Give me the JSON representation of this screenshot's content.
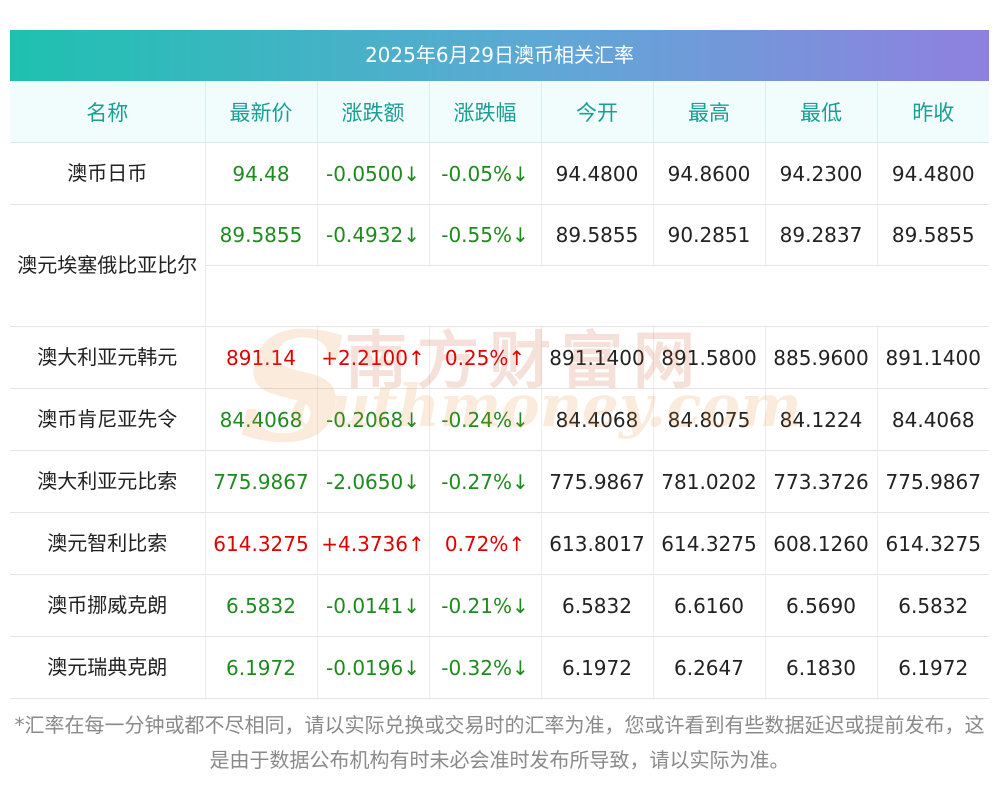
{
  "title": "2025年6月29日澳币相关汇率",
  "headers": [
    "名称",
    "最新价",
    "涨跌额",
    "涨跌幅",
    "今开",
    "最高",
    "最低",
    "昨收"
  ],
  "rows": [
    {
      "name": "澳币日币",
      "latest": "94.48",
      "change": "-0.0500↓",
      "pct": "-0.05%↓",
      "open": "94.4800",
      "high": "94.8600",
      "low": "94.2300",
      "prev": "94.4800",
      "dir": "down"
    },
    {
      "name": "澳元埃塞俄比亚比尔",
      "latest": "89.5855",
      "change": "-0.4932↓",
      "pct": "-0.55%↓",
      "open": "89.5855",
      "high": "90.2851",
      "low": "89.2837",
      "prev": "89.5855",
      "dir": "down"
    },
    {
      "name": "澳大利亚元韩元",
      "latest": "891.14",
      "change": "+2.2100↑",
      "pct": "0.25%↑",
      "open": "891.1400",
      "high": "891.5800",
      "low": "885.9600",
      "prev": "891.1400",
      "dir": "up"
    },
    {
      "name": "澳币肯尼亚先令",
      "latest": "84.4068",
      "change": "-0.2068↓",
      "pct": "-0.24%↓",
      "open": "84.4068",
      "high": "84.8075",
      "low": "84.1224",
      "prev": "84.4068",
      "dir": "down"
    },
    {
      "name": "澳大利亚元比索",
      "latest": "775.9867",
      "change": "-2.0650↓",
      "pct": "-0.27%↓",
      "open": "775.9867",
      "high": "781.0202",
      "low": "773.3726",
      "prev": "775.9867",
      "dir": "down"
    },
    {
      "name": "澳元智利比索",
      "latest": "614.3275",
      "change": "+4.3736↑",
      "pct": "0.72%↑",
      "open": "613.8017",
      "high": "614.3275",
      "low": "608.1260",
      "prev": "614.3275",
      "dir": "up"
    },
    {
      "name": "澳币挪威克朗",
      "latest": "6.5832",
      "change": "-0.0141↓",
      "pct": "-0.21%↓",
      "open": "6.5832",
      "high": "6.6160",
      "low": "6.5690",
      "prev": "6.5832",
      "dir": "down"
    },
    {
      "name": "澳元瑞典克朗",
      "latest": "6.1972",
      "change": "-0.0196↓",
      "pct": "-0.32%↓",
      "open": "6.1972",
      "high": "6.2647",
      "low": "6.1830",
      "prev": "6.1972",
      "dir": "down"
    }
  ],
  "watermark": {
    "cn": "南方财富网",
    "en": "outhmoney.com",
    "s": "S"
  },
  "footnote": "*汇率在每一分钟或都不尽相同，请以实际兑换或交易时的汇率为准，您或许看到有些数据延迟或提前发布，这是由于数据公布机构有时未必会准时发布所导致，请以实际为准。",
  "colors": {
    "up": "#e00000",
    "down": "#1f8a1f",
    "header_text": "#1a9e96"
  }
}
